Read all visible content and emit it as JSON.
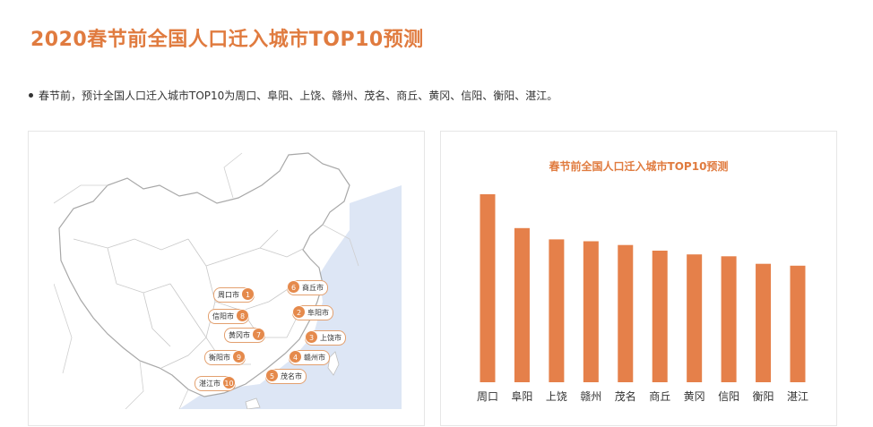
{
  "page": {
    "title": "2020春节前全国人口迁入城市TOP10预测",
    "summary": "春节前，预计全国人口迁入城市TOP10为周口、阜阳、上饶、赣州、茂名、商丘、黄冈、信阳、衡阳、湛江。"
  },
  "map": {
    "tags": [
      {
        "city": "周口市",
        "rank": "1"
      },
      {
        "city": "商丘市",
        "rank": "6"
      },
      {
        "city": "阜阳市",
        "rank": "2"
      },
      {
        "city": "信阳市",
        "rank": "8"
      },
      {
        "city": "黄冈市",
        "rank": "7"
      },
      {
        "city": "上饶市",
        "rank": "3"
      },
      {
        "city": "衡阳市",
        "rank": "9"
      },
      {
        "city": "赣州市",
        "rank": "4"
      },
      {
        "city": "湛江市",
        "rank": "10"
      },
      {
        "city": "茂名市",
        "rank": "5"
      }
    ]
  },
  "colors": {
    "accent": "#e07b3f",
    "bar": "#e5804a",
    "sea": "#dde6f5",
    "land_border": "#bfbfbf"
  },
  "chart_data": {
    "type": "bar",
    "title": "春节前全国人口迁入城市TOP10预测",
    "categories": [
      "周口",
      "阜阳",
      "上饶",
      "赣州",
      "茂名",
      "商丘",
      "黄冈",
      "信阳",
      "衡阳",
      "湛江"
    ],
    "values": [
      100,
      82,
      76,
      75,
      73,
      70,
      68,
      67,
      63,
      62
    ],
    "ylim": [
      0,
      100
    ],
    "grid": false,
    "legend": "none",
    "xlabel": "",
    "ylabel": ""
  }
}
